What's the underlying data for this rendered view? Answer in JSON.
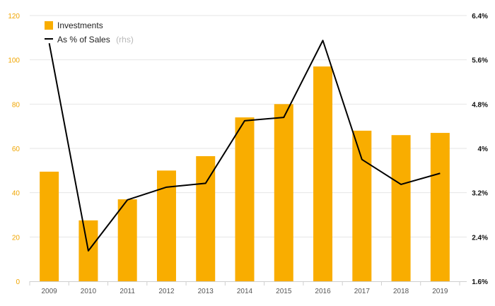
{
  "chart_data": {
    "type": "bar",
    "categories": [
      "2009",
      "2010",
      "2011",
      "2012",
      "2013",
      "2014",
      "2015",
      "2016",
      "2017",
      "2018",
      "2019"
    ],
    "series": [
      {
        "name": "Investments",
        "type": "bar",
        "axis": "left",
        "color": "#f9ad00",
        "values": [
          49.5,
          27.5,
          37,
          50,
          56.5,
          74,
          80,
          97,
          68,
          66,
          67
        ]
      },
      {
        "name": "As % of Sales",
        "name_suffix": "(rhs)",
        "type": "line",
        "axis": "right",
        "color": "#000000",
        "values": [
          5.9,
          2.15,
          3.07,
          3.3,
          3.37,
          4.5,
          4.56,
          5.95,
          3.8,
          3.35,
          3.55
        ]
      }
    ],
    "ylim": [
      0,
      120
    ],
    "y_ticks": [
      0,
      20,
      40,
      60,
      80,
      100,
      120
    ],
    "y_tick_labels": [
      "0",
      "20",
      "40",
      "60",
      "80",
      "100",
      "120"
    ],
    "y2lim": [
      1.6,
      6.4
    ],
    "y2_ticks": [
      1.6,
      2.4,
      3.2,
      4.0,
      4.8,
      5.6,
      6.4
    ],
    "y2_tick_labels": [
      "1.6%",
      "2.4%",
      "3.2%",
      "4%",
      "4.8%",
      "5.6%",
      "6.4%"
    ],
    "grid": true,
    "legend_position": "top-left",
    "colors": {
      "left_axis_text": "#f0a500",
      "right_axis_text": "#111111",
      "grid": "#e6e6e6"
    }
  }
}
